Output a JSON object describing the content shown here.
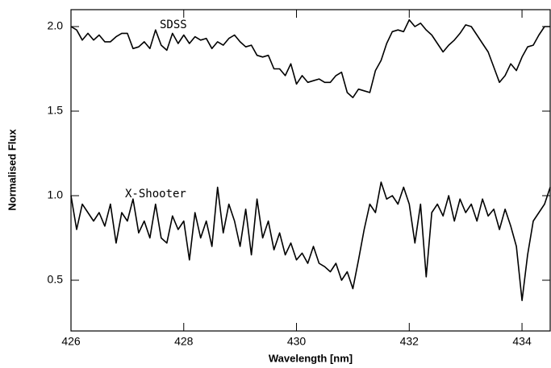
{
  "chart_data": {
    "type": "line",
    "xlabel": "Wavelength [nm]",
    "ylabel": "Normalised Flux",
    "x": [
      426.0,
      426.1,
      426.2,
      426.3,
      426.4,
      426.5,
      426.6,
      426.7,
      426.8,
      426.9,
      427.0,
      427.1,
      427.2,
      427.3,
      427.4,
      427.5,
      427.6,
      427.7,
      427.8,
      427.9,
      428.0,
      428.1,
      428.2,
      428.3,
      428.4,
      428.5,
      428.6,
      428.7,
      428.8,
      428.9,
      429.0,
      429.1,
      429.2,
      429.3,
      429.4,
      429.5,
      429.6,
      429.7,
      429.8,
      429.9,
      430.0,
      430.1,
      430.2,
      430.3,
      430.4,
      430.5,
      430.6,
      430.7,
      430.8,
      430.9,
      431.0,
      431.1,
      431.2,
      431.3,
      431.4,
      431.5,
      431.6,
      431.7,
      431.8,
      431.9,
      432.0,
      432.1,
      432.2,
      432.3,
      432.4,
      432.5,
      432.6,
      432.7,
      432.8,
      432.9,
      433.0,
      433.1,
      433.2,
      433.3,
      433.4,
      433.5,
      433.6,
      433.7,
      433.8,
      433.9,
      434.0,
      434.1,
      434.2,
      434.3,
      434.4,
      434.5
    ],
    "series": [
      {
        "name": "SDSS",
        "color": "#000000",
        "values": [
          2.0,
          1.98,
          1.92,
          1.96,
          1.92,
          1.95,
          1.91,
          1.91,
          1.94,
          1.96,
          1.96,
          1.87,
          1.88,
          1.91,
          1.87,
          1.98,
          1.89,
          1.86,
          1.96,
          1.9,
          1.95,
          1.9,
          1.94,
          1.92,
          1.93,
          1.87,
          1.91,
          1.89,
          1.93,
          1.95,
          1.91,
          1.88,
          1.89,
          1.83,
          1.82,
          1.83,
          1.75,
          1.75,
          1.71,
          1.78,
          1.66,
          1.71,
          1.67,
          1.68,
          1.69,
          1.67,
          1.67,
          1.71,
          1.73,
          1.61,
          1.58,
          1.63,
          1.62,
          1.61,
          1.74,
          1.8,
          1.9,
          1.97,
          1.98,
          1.97,
          2.04,
          2.0,
          2.02,
          1.98,
          1.95,
          1.9,
          1.85,
          1.89,
          1.92,
          1.96,
          2.01,
          2.0,
          1.95,
          1.9,
          1.85,
          1.76,
          1.67,
          1.71,
          1.78,
          1.74,
          1.82,
          1.88,
          1.89,
          1.95,
          2.0,
          2.0
        ]
      },
      {
        "name": "X-Shooter",
        "color": "#000000",
        "values": [
          1.0,
          0.8,
          0.95,
          0.9,
          0.85,
          0.9,
          0.82,
          0.95,
          0.72,
          0.9,
          0.85,
          0.98,
          0.78,
          0.85,
          0.75,
          0.95,
          0.75,
          0.72,
          0.88,
          0.8,
          0.85,
          0.62,
          0.9,
          0.75,
          0.85,
          0.7,
          1.05,
          0.78,
          0.95,
          0.85,
          0.7,
          0.92,
          0.65,
          0.98,
          0.75,
          0.85,
          0.68,
          0.78,
          0.65,
          0.72,
          0.62,
          0.66,
          0.6,
          0.7,
          0.6,
          0.58,
          0.55,
          0.6,
          0.5,
          0.55,
          0.45,
          0.62,
          0.8,
          0.95,
          0.9,
          1.08,
          0.98,
          1.0,
          0.95,
          1.05,
          0.95,
          0.72,
          0.95,
          0.52,
          0.9,
          0.95,
          0.88,
          1.0,
          0.85,
          0.98,
          0.9,
          0.95,
          0.85,
          0.98,
          0.88,
          0.92,
          0.8,
          0.92,
          0.82,
          0.7,
          0.38,
          0.65,
          0.85,
          0.9,
          0.95,
          1.05
        ]
      }
    ],
    "xlim": [
      426,
      434.5
    ],
    "ylim": [
      0.2,
      2.1
    ],
    "xticks": [
      426,
      428,
      430,
      432,
      434
    ],
    "yticks": [
      0.5,
      {
        "value": 1,
        "label": "1.0"
      },
      1.5,
      {
        "value": 2,
        "label": "2.0"
      }
    ]
  }
}
